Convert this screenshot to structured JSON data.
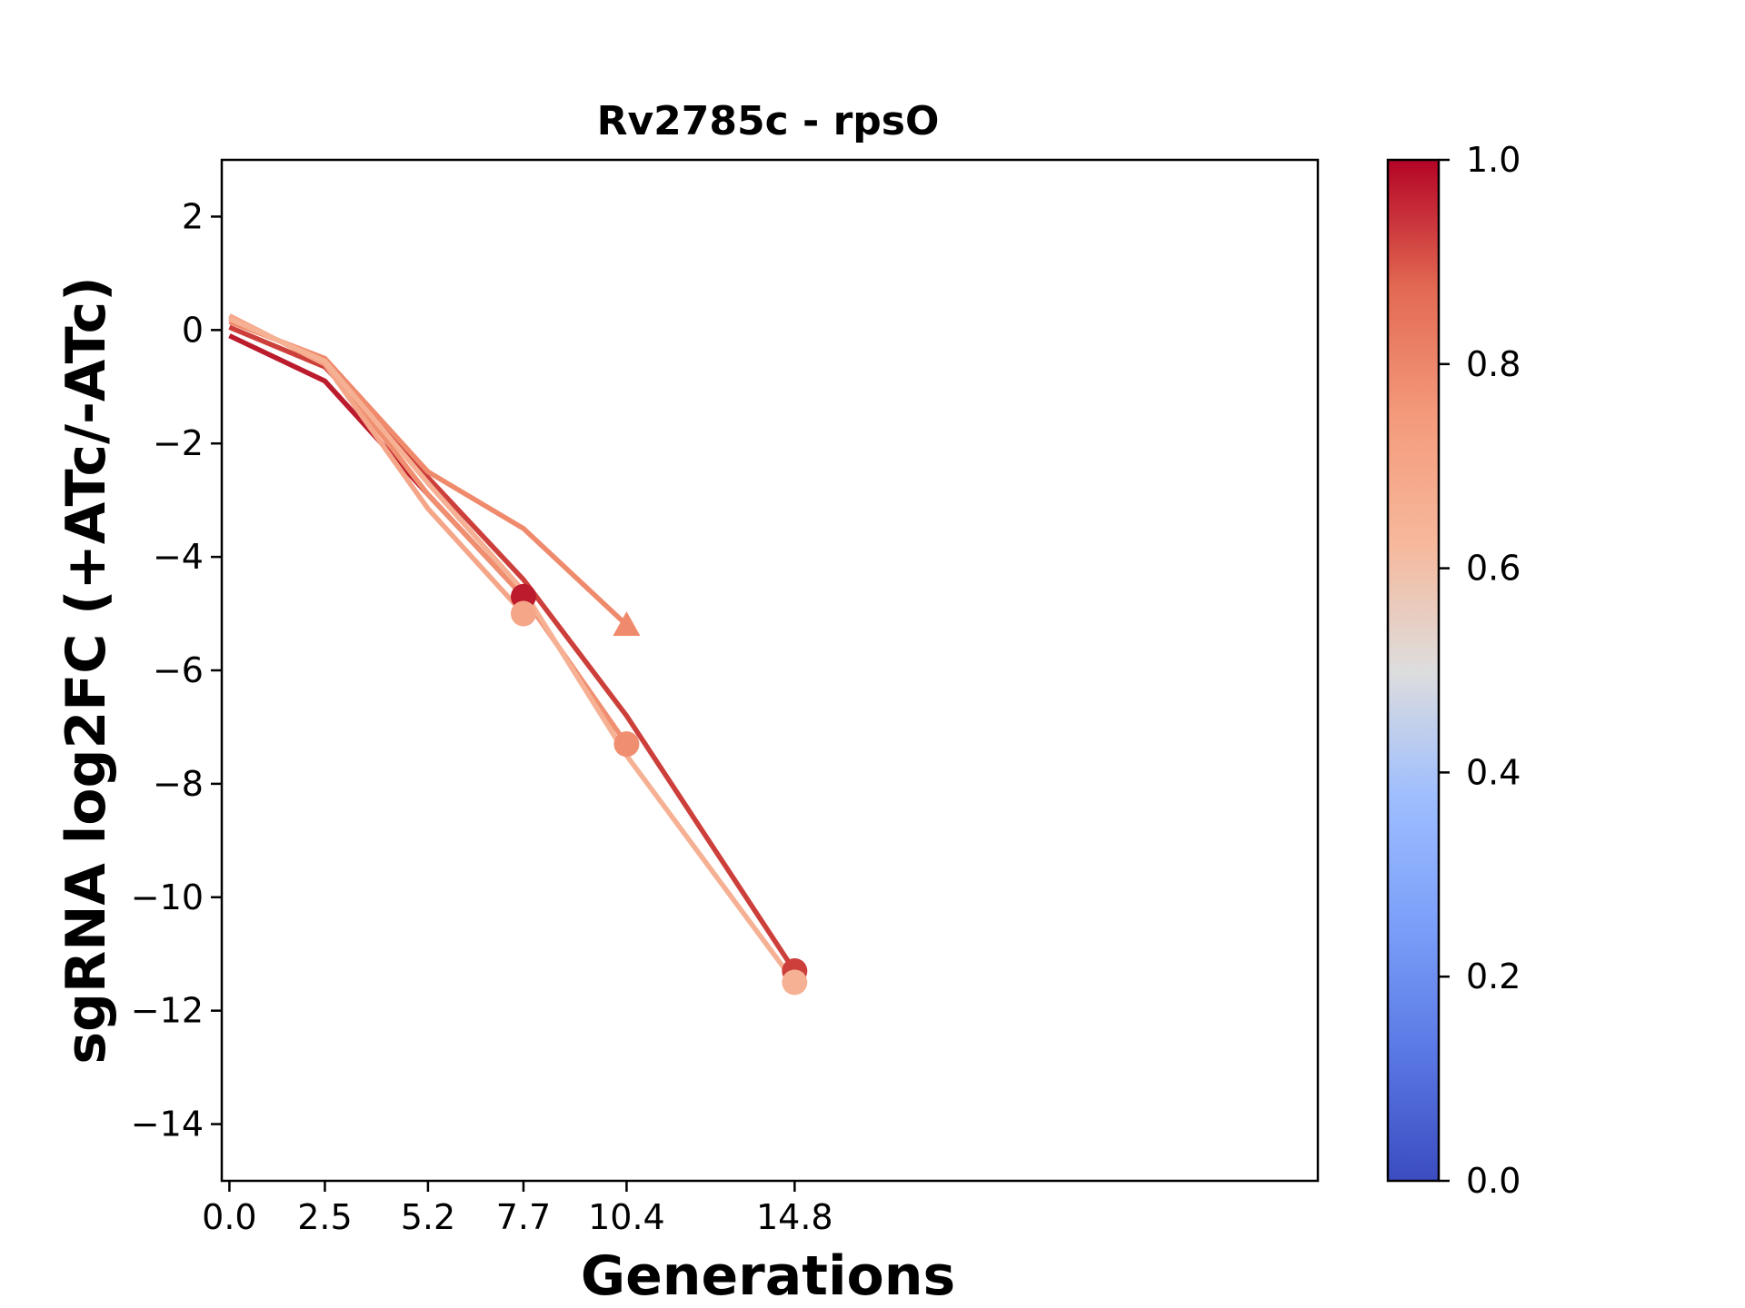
{
  "chart_data": {
    "type": "line",
    "title": "Rv2785c - rpsO",
    "xlabel": "Generations",
    "ylabel": "sgRNA log2FC (+ATc/-ATc)",
    "x_ticks": [
      "0.0",
      "2.5",
      "5.2",
      "7.7",
      "10.4",
      "14.8"
    ],
    "y_ticks": [
      "2",
      "0",
      "−2",
      "−4",
      "−6",
      "−8",
      "−10",
      "−12",
      "−14"
    ],
    "xlim": [
      -0.2,
      28.5
    ],
    "ylim": [
      -15,
      3
    ],
    "grid": false,
    "colorbar": {
      "range": [
        0.0,
        1.0
      ],
      "ticks": [
        "0.0",
        "0.2",
        "0.4",
        "0.6",
        "0.8",
        "1.0"
      ],
      "colormap": "coolwarm",
      "low_color": "#3b4cc0",
      "mid_color": "#dddddd",
      "high_color": "#b40426"
    },
    "series": [
      {
        "value": 0.97,
        "color": "#bb1b2c",
        "x": [
          0.0,
          2.5,
          5.2,
          7.7
        ],
        "y": [
          -0.1,
          -0.9,
          -2.9,
          -4.7
        ],
        "end_marker": "circle"
      },
      {
        "value": 0.9,
        "color": "#cc3f3a",
        "x": [
          0.0,
          2.5,
          5.2,
          7.7,
          10.4,
          14.8
        ],
        "y": [
          0.05,
          -0.65,
          -2.6,
          -4.4,
          -6.8,
          -11.3
        ],
        "end_marker": "circle"
      },
      {
        "value": 0.77,
        "color": "#ef8a6c",
        "x": [
          0.0,
          2.5,
          5.2,
          7.7,
          10.4
        ],
        "y": [
          0.15,
          -0.5,
          -2.5,
          -3.5,
          -5.2
        ],
        "end_marker": "triangle"
      },
      {
        "value": 0.78,
        "color": "#f08f70",
        "x": [
          0.0,
          2.5,
          5.2,
          7.7,
          10.4
        ],
        "y": [
          0.2,
          -0.55,
          -2.9,
          -4.7,
          -7.3
        ],
        "end_marker": "circle"
      },
      {
        "value": 0.7,
        "color": "#f5a688",
        "x": [
          0.0,
          2.5,
          5.2,
          7.7
        ],
        "y": [
          0.25,
          -0.6,
          -3.15,
          -5.0
        ],
        "end_marker": "circle"
      },
      {
        "value": 0.68,
        "color": "#f6b194",
        "x": [
          0.0,
          2.5,
          5.2,
          7.7,
          10.4,
          14.8
        ],
        "y": [
          0.2,
          -0.55,
          -2.7,
          -4.6,
          -7.5,
          -11.5
        ],
        "end_marker": "circle"
      }
    ]
  }
}
